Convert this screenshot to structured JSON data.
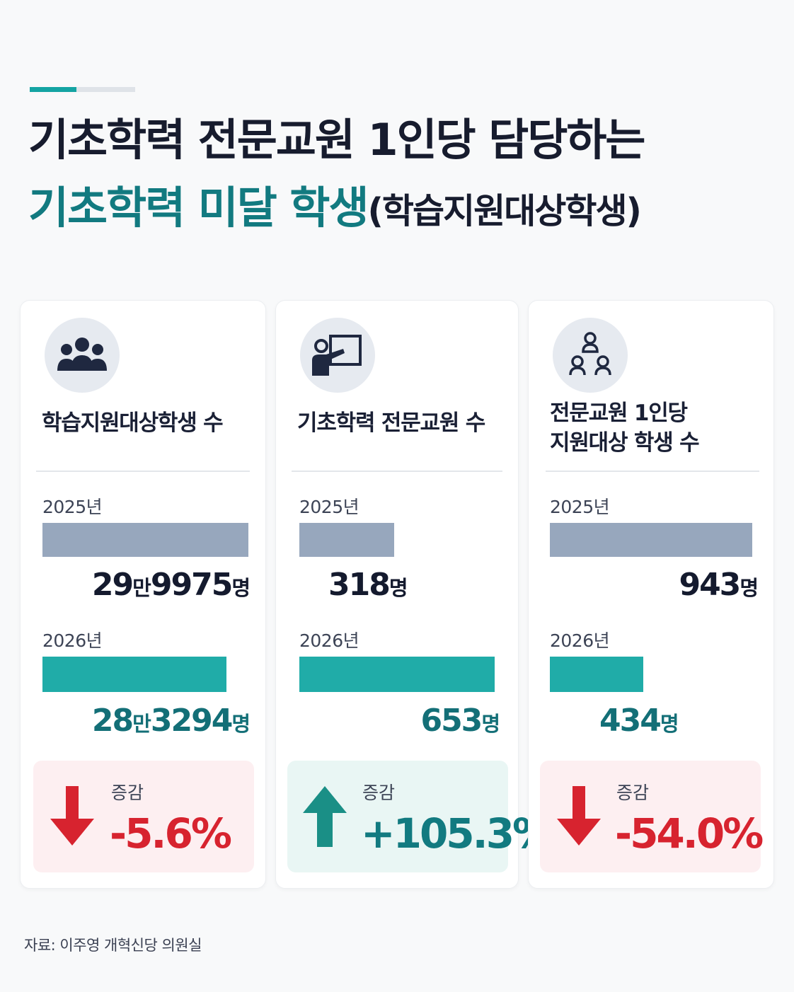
{
  "header": {
    "title_line1": "기초학력 전문교원 1인당 담당하는",
    "title_line2_highlight": "기초학력 미달 학생",
    "title_line2_sub": "(학습지원대상학생)"
  },
  "colors": {
    "teal": "#127a80",
    "bar_2025": "#97a7bd",
    "bar_2026": "#20aca8",
    "decrease": "#d7232f",
    "increase": "#127a80"
  },
  "chart_data": [
    {
      "type": "bar",
      "title": "학습지원대상학생 수",
      "icon": "people-group-icon",
      "categories": [
        "2025년",
        "2026년"
      ],
      "values": [
        299975,
        283294
      ],
      "value_labels": [
        {
          "num": "29",
          "mid": "만",
          "num2": "9975",
          "unit": "명"
        },
        {
          "num": "28",
          "mid": "만",
          "num2": "3294",
          "unit": "명"
        }
      ],
      "change_label": "증감",
      "change_value": "-5.6%",
      "direction": "down"
    },
    {
      "type": "bar",
      "title": "기초학력 전문교원 수",
      "icon": "teacher-board-icon",
      "categories": [
        "2025년",
        "2026년"
      ],
      "values": [
        318,
        653
      ],
      "value_labels": [
        {
          "num": "318",
          "mid": "",
          "num2": "",
          "unit": "명"
        },
        {
          "num": "653",
          "mid": "",
          "num2": "",
          "unit": "명"
        }
      ],
      "change_label": "증감",
      "change_value": "+105.3%",
      "direction": "up"
    },
    {
      "type": "bar",
      "title_line1": "전문교원 1인당",
      "title_line2": "지원대상 학생 수",
      "icon": "mentor-network-icon",
      "categories": [
        "2025년",
        "2026년"
      ],
      "values": [
        943,
        434
      ],
      "value_labels": [
        {
          "num": "943",
          "mid": "",
          "num2": "",
          "unit": "명"
        },
        {
          "num": "434",
          "mid": "",
          "num2": "",
          "unit": "명"
        }
      ],
      "change_label": "증감",
      "change_value": "-54.0%",
      "direction": "down"
    }
  ],
  "source": "자료: 이주영 개혁신당 의원실"
}
